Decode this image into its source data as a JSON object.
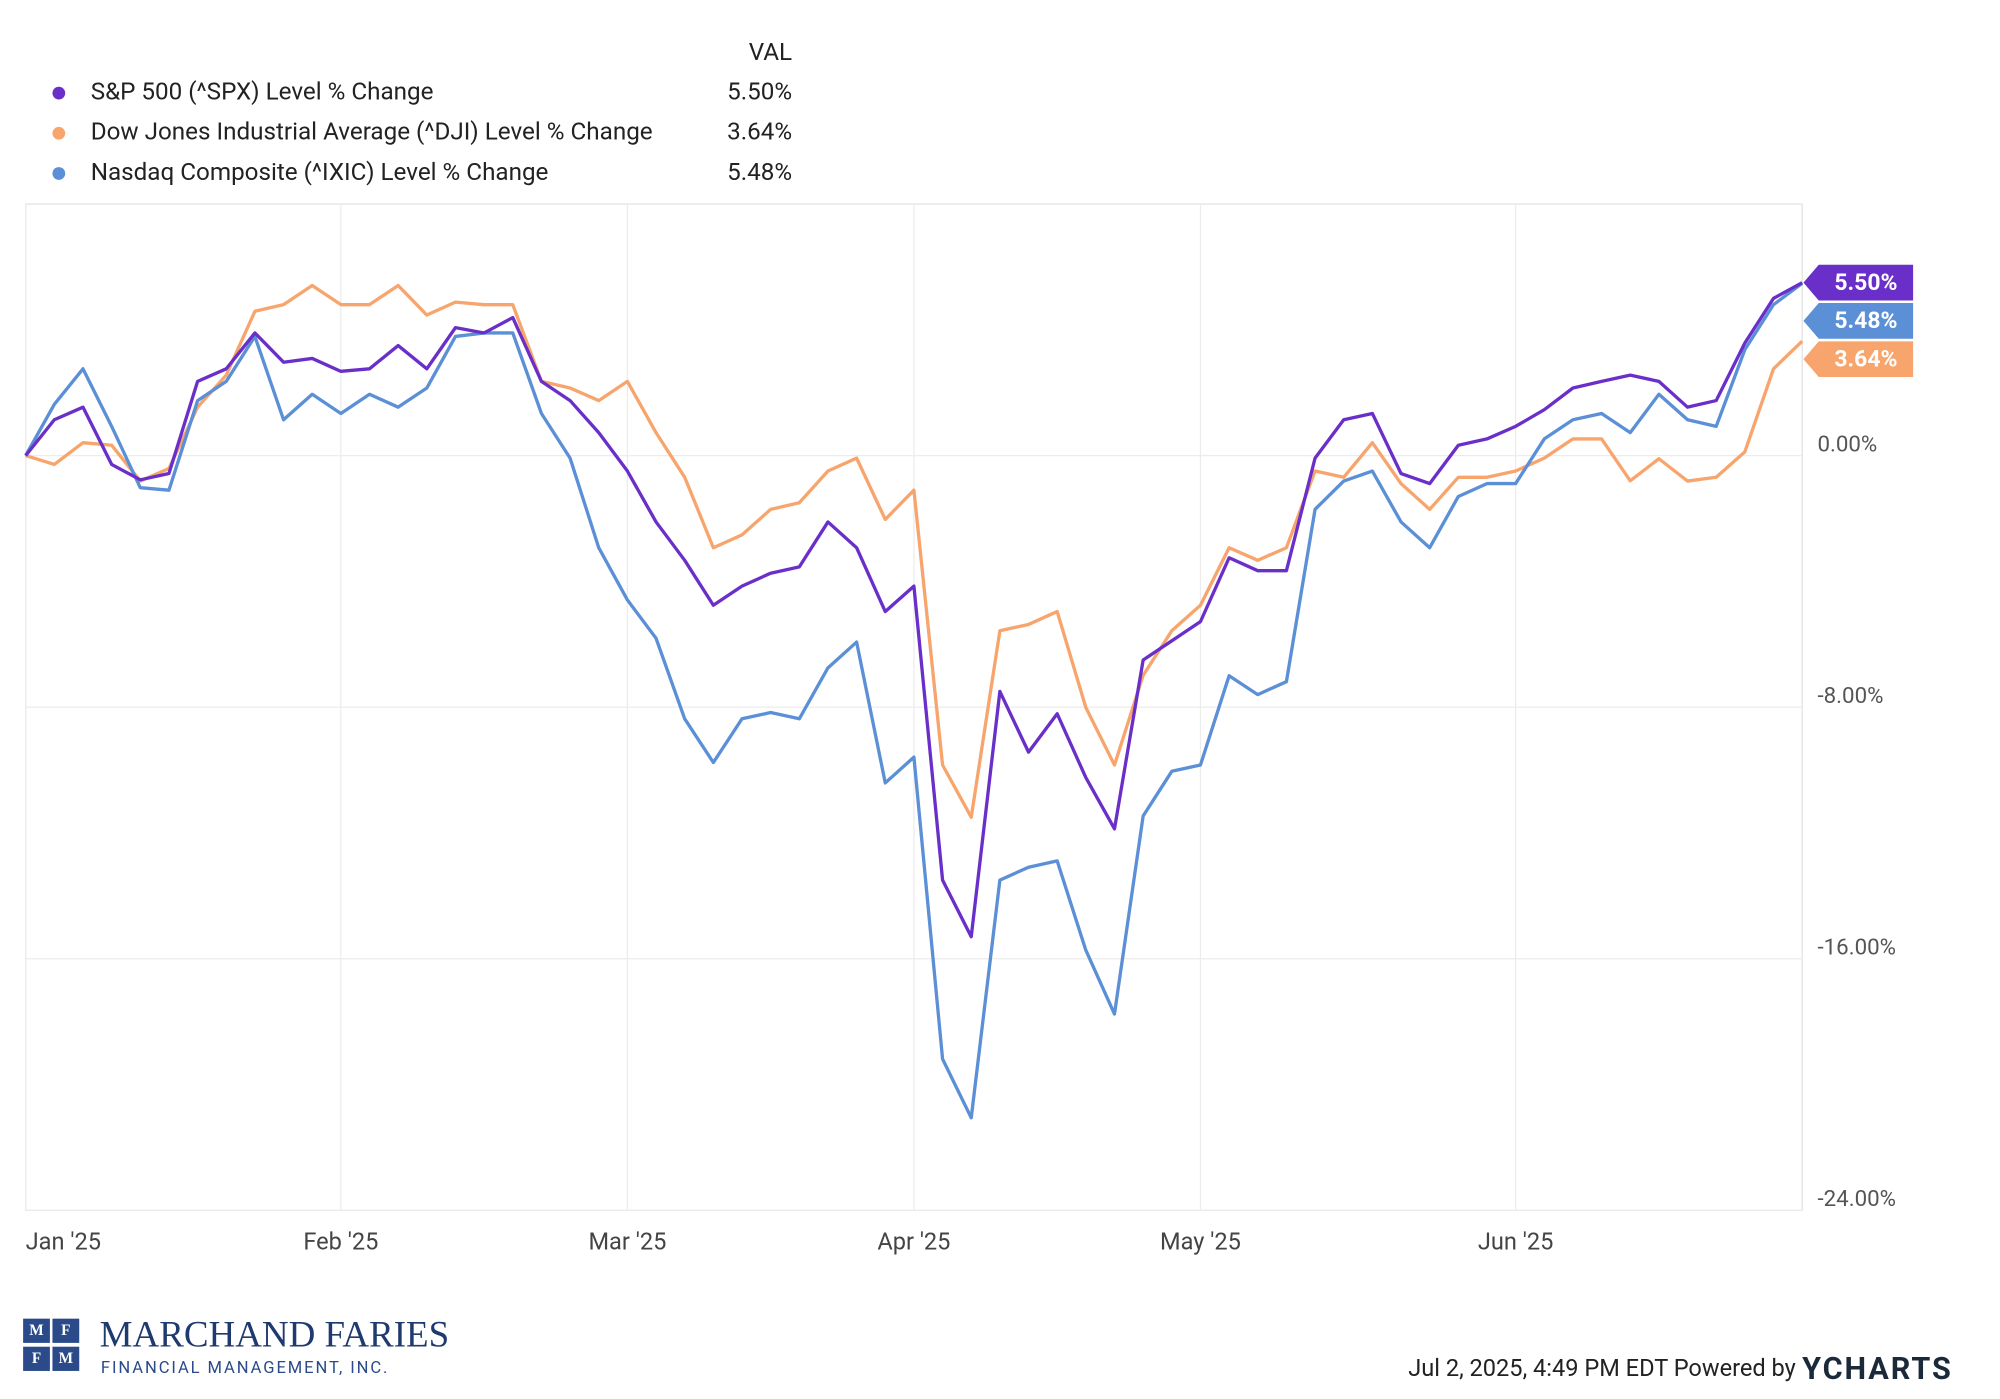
{
  "chart_data": {
    "type": "line",
    "legend_header": "VAL",
    "categories": [
      "Jan '25",
      null,
      null,
      null,
      null,
      null,
      null,
      null,
      null,
      null,
      null,
      "Feb '25",
      null,
      null,
      null,
      null,
      null,
      null,
      null,
      null,
      null,
      "Mar '25",
      null,
      null,
      null,
      null,
      null,
      null,
      null,
      null,
      null,
      "Apr '25",
      null,
      null,
      null,
      null,
      null,
      null,
      null,
      null,
      null,
      "May '25",
      null,
      null,
      null,
      null,
      null,
      null,
      null,
      null,
      null,
      null,
      "Jun '25",
      null,
      null,
      null,
      null,
      null,
      null,
      null,
      null,
      null,
      null
    ],
    "series": [
      {
        "name": "S&P 500 (^SPX) Level % Change",
        "color": "#6a2fc9",
        "latest": {
          "value": 5.5,
          "label": "5.50%"
        },
        "values": [
          0,
          1.14,
          1.54,
          -0.28,
          -0.77,
          -0.57,
          2.36,
          2.76,
          3.9,
          2.97,
          3.09,
          2.68,
          2.76,
          3.5,
          2.76,
          4.07,
          3.9,
          4.39,
          2.36,
          1.75,
          0.73,
          -0.49,
          -2.11,
          -3.33,
          -4.76,
          -4.15,
          -3.74,
          -3.54,
          -2.11,
          -2.93,
          -4.96,
          -4.15,
          -13.5,
          -15.3,
          -7.5,
          -9.43,
          -8.21,
          -10.24,
          -11.87,
          -6.5,
          -5.89,
          -5.28,
          -3.25,
          -3.66,
          -3.66,
          -0.08,
          1.14,
          1.34,
          -0.57,
          -0.89,
          0.33,
          0.53,
          0.93,
          1.46,
          2.15,
          2.36,
          2.56,
          2.36,
          1.54,
          1.75,
          3.58,
          5.0,
          5.5
        ]
      },
      {
        "name": "Dow Jones Industrial Average (^DJI) Level % Change",
        "color": "#f7a56d",
        "latest": {
          "value": 3.64,
          "label": "3.64%"
        },
        "values": [
          0,
          -0.28,
          0.41,
          0.33,
          -0.81,
          -0.41,
          1.54,
          2.56,
          4.59,
          4.8,
          5.41,
          4.8,
          4.8,
          5.41,
          4.47,
          4.88,
          4.8,
          4.8,
          2.36,
          2.15,
          1.75,
          2.36,
          0.73,
          -0.69,
          -2.93,
          -2.52,
          -1.71,
          -1.5,
          -0.49,
          -0.08,
          -2.03,
          -1.1,
          -9.84,
          -11.5,
          -5.57,
          -5.37,
          -4.96,
          -8.01,
          -9.84,
          -6.99,
          -5.57,
          -4.76,
          -2.93,
          -3.33,
          -2.93,
          -0.49,
          -0.69,
          0.41,
          -0.89,
          -1.71,
          -0.69,
          -0.69,
          -0.49,
          -0.08,
          0.53,
          0.53,
          -0.8,
          -0.1,
          -0.81,
          -0.69,
          0.12,
          2.76,
          3.64
        ]
      },
      {
        "name": "Nasdaq Composite (^IXIC) Level % Change",
        "color": "#5b8fd6",
        "latest": {
          "value": 5.48,
          "label": "5.48%"
        },
        "values": [
          0,
          1.63,
          2.76,
          0.93,
          -1.02,
          -1.1,
          1.75,
          2.36,
          3.79,
          1.14,
          1.95,
          1.34,
          1.95,
          1.54,
          2.15,
          3.79,
          3.9,
          3.9,
          1.34,
          -0.08,
          -2.93,
          -4.59,
          -5.81,
          -8.37,
          -9.76,
          -8.37,
          -8.17,
          -8.37,
          -6.75,
          -5.93,
          -10.41,
          -9.59,
          -19.19,
          -21.06,
          -13.5,
          -13.09,
          -12.89,
          -15.73,
          -17.76,
          -11.46,
          -10.04,
          -9.84,
          -7.0,
          -7.6,
          -7.19,
          -1.71,
          -0.81,
          -0.49,
          -2.11,
          -2.93,
          -1.3,
          -0.89,
          -0.89,
          0.53,
          1.14,
          1.34,
          0.73,
          1.95,
          1.14,
          0.93,
          3.37,
          4.8,
          5.48
        ]
      }
    ],
    "ylim": [
      -24,
      8
    ],
    "yticks": [
      {
        "value": -24,
        "label": "-24.00%"
      },
      {
        "value": -16,
        "label": "-16.00%"
      },
      {
        "value": -8,
        "label": "-8.00%"
      },
      {
        "value": 0,
        "label": "0.00%"
      }
    ],
    "grid": true
  },
  "footer": {
    "timestamp": "Jul 2, 2025, 4:49 PM EDT Powered by",
    "brand": "YCHARTS"
  },
  "logo": {
    "name": "MARCHAND FARIES",
    "subtitle": "FINANCIAL MANAGEMENT, INC.",
    "letters": [
      "M",
      "F",
      "F",
      "M"
    ]
  }
}
